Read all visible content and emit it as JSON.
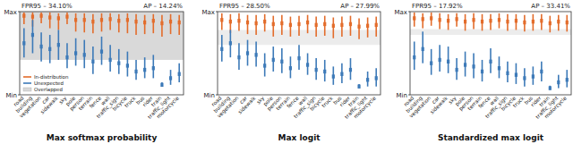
{
  "chart_data": [
    {
      "type": "errorbar",
      "title": "Max softmax probability",
      "annotations": [
        "FPR95 – 34.10%",
        "AP – 14.24%"
      ],
      "categories": [
        "road",
        "building",
        "vegetation",
        "car",
        "sidewalk",
        "sky",
        "pole",
        "person",
        "terrain",
        "fence",
        "wall",
        "traffic_sign",
        "bicycle",
        "truck",
        "bus",
        "rider",
        "train",
        "traffic_light",
        "motorcycle"
      ],
      "ylim": [
        0,
        1
      ],
      "yticks": [
        {
          "value": 1,
          "label": "Max"
        },
        {
          "value": 0,
          "label": "Min"
        }
      ],
      "legend": "lower left",
      "overlap": {
        "name": "Overlapped",
        "range": [
          0.42,
          1.0
        ],
        "color": "#d9d9d9"
      },
      "series": [
        {
          "name": "In-distribution",
          "color": "#e36c2b",
          "values": [
            0.95,
            0.94,
            0.95,
            0.93,
            0.92,
            0.94,
            0.9,
            0.9,
            0.88,
            0.9,
            0.91,
            0.89,
            0.9,
            0.88,
            0.87,
            0.89,
            0.86,
            0.88,
            0.87
          ],
          "lower": [
            0.85,
            0.82,
            0.86,
            0.8,
            0.78,
            0.85,
            0.76,
            0.75,
            0.74,
            0.76,
            0.78,
            0.75,
            0.74,
            0.72,
            0.73,
            0.74,
            0.7,
            0.73,
            0.72
          ],
          "upper": [
            0.99,
            0.99,
            0.99,
            0.99,
            0.98,
            0.99,
            0.98,
            0.98,
            0.97,
            0.98,
            0.98,
            0.97,
            0.98,
            0.97,
            0.96,
            0.97,
            0.96,
            0.97,
            0.96
          ]
        },
        {
          "name": "Unexpected",
          "color": "#3d7ab8",
          "values": [
            0.62,
            0.72,
            0.58,
            0.55,
            0.6,
            0.45,
            0.5,
            0.48,
            0.4,
            0.52,
            0.42,
            0.38,
            0.35,
            0.28,
            0.3,
            0.32,
            0.12,
            0.2,
            0.25
          ],
          "lower": [
            0.45,
            0.5,
            0.4,
            0.38,
            0.42,
            0.32,
            0.35,
            0.32,
            0.25,
            0.36,
            0.28,
            0.25,
            0.22,
            0.18,
            0.2,
            0.2,
            0.1,
            0.12,
            0.15
          ],
          "upper": [
            0.8,
            0.9,
            0.75,
            0.72,
            0.78,
            0.62,
            0.68,
            0.66,
            0.58,
            0.7,
            0.6,
            0.55,
            0.52,
            0.42,
            0.45,
            0.48,
            0.15,
            0.3,
            0.38
          ]
        }
      ]
    },
    {
      "type": "errorbar",
      "title": "Max logit",
      "annotations": [
        "FPR95 – 28.50%",
        "AP – 27.99%"
      ],
      "categories": [
        "road",
        "building",
        "vegetation",
        "car",
        "sidewalk",
        "sky",
        "pole",
        "person",
        "terrain",
        "fence",
        "wall",
        "traffic_sign",
        "bicycle",
        "truck",
        "bus",
        "rider",
        "train",
        "traffic_light",
        "motorcycle"
      ],
      "ylim": [
        0,
        1
      ],
      "yticks": [
        {
          "value": 1,
          "label": "Max"
        },
        {
          "value": 0,
          "label": "Min"
        }
      ],
      "overlap": {
        "range": [
          0.6,
          0.78
        ],
        "color": "#ececec"
      },
      "series": [
        {
          "color": "#e36c2b",
          "values": [
            0.9,
            0.88,
            0.89,
            0.87,
            0.86,
            0.88,
            0.85,
            0.86,
            0.84,
            0.85,
            0.87,
            0.84,
            0.85,
            0.83,
            0.84,
            0.85,
            0.82,
            0.83,
            0.84
          ],
          "lower": [
            0.78,
            0.74,
            0.77,
            0.73,
            0.72,
            0.76,
            0.7,
            0.72,
            0.7,
            0.71,
            0.74,
            0.7,
            0.71,
            0.68,
            0.7,
            0.71,
            0.67,
            0.69,
            0.7
          ],
          "upper": [
            0.98,
            0.97,
            0.98,
            0.96,
            0.96,
            0.97,
            0.95,
            0.96,
            0.94,
            0.95,
            0.96,
            0.94,
            0.95,
            0.93,
            0.94,
            0.95,
            0.92,
            0.93,
            0.94
          ]
        },
        {
          "color": "#3d7ab8",
          "values": [
            0.55,
            0.62,
            0.45,
            0.5,
            0.48,
            0.35,
            0.42,
            0.4,
            0.32,
            0.44,
            0.36,
            0.3,
            0.28,
            0.22,
            0.25,
            0.3,
            0.1,
            0.18,
            0.2
          ],
          "lower": [
            0.4,
            0.45,
            0.3,
            0.35,
            0.34,
            0.22,
            0.28,
            0.26,
            0.2,
            0.3,
            0.24,
            0.18,
            0.16,
            0.12,
            0.14,
            0.18,
            0.08,
            0.1,
            0.1
          ],
          "upper": [
            0.72,
            0.78,
            0.62,
            0.66,
            0.64,
            0.5,
            0.58,
            0.56,
            0.46,
            0.6,
            0.5,
            0.44,
            0.42,
            0.34,
            0.38,
            0.44,
            0.13,
            0.28,
            0.32
          ]
        }
      ]
    },
    {
      "type": "errorbar",
      "title": "Standardized max logit",
      "annotations": [
        "FPR95 – 17.92%",
        "AP – 33.41%"
      ],
      "categories": [
        "road",
        "building",
        "vegetation",
        "car",
        "sidewalk",
        "sky",
        "pole",
        "person",
        "terrain",
        "fence",
        "wall",
        "traffic_sign",
        "bicycle",
        "truck",
        "bus",
        "rider",
        "train",
        "traffic_light",
        "motorcycle"
      ],
      "ylim": [
        0,
        1
      ],
      "yticks": [
        {
          "value": 1,
          "label": "Max"
        },
        {
          "value": 0,
          "label": "Min"
        }
      ],
      "overlap": {
        "range": [
          0.72,
          0.79
        ],
        "color": "#ececec"
      },
      "series": [
        {
          "color": "#e36c2b",
          "values": [
            0.92,
            0.91,
            0.92,
            0.9,
            0.89,
            0.91,
            0.88,
            0.9,
            0.88,
            0.89,
            0.9,
            0.88,
            0.89,
            0.87,
            0.88,
            0.89,
            0.86,
            0.88,
            0.87
          ],
          "lower": [
            0.82,
            0.8,
            0.83,
            0.79,
            0.78,
            0.82,
            0.77,
            0.79,
            0.77,
            0.78,
            0.8,
            0.77,
            0.78,
            0.76,
            0.77,
            0.78,
            0.75,
            0.77,
            0.76
          ],
          "upper": [
            0.99,
            0.98,
            0.99,
            0.98,
            0.97,
            0.98,
            0.97,
            0.98,
            0.97,
            0.97,
            0.98,
            0.97,
            0.97,
            0.96,
            0.97,
            0.97,
            0.95,
            0.96,
            0.96
          ]
        },
        {
          "color": "#3d7ab8",
          "values": [
            0.45,
            0.55,
            0.38,
            0.42,
            0.4,
            0.3,
            0.36,
            0.34,
            0.28,
            0.4,
            0.32,
            0.26,
            0.24,
            0.2,
            0.22,
            0.28,
            0.08,
            0.15,
            0.18
          ],
          "lower": [
            0.3,
            0.38,
            0.24,
            0.28,
            0.26,
            0.18,
            0.22,
            0.2,
            0.16,
            0.26,
            0.2,
            0.15,
            0.13,
            0.1,
            0.12,
            0.16,
            0.06,
            0.08,
            0.09
          ],
          "upper": [
            0.64,
            0.76,
            0.55,
            0.6,
            0.58,
            0.44,
            0.52,
            0.5,
            0.42,
            0.56,
            0.46,
            0.4,
            0.38,
            0.32,
            0.34,
            0.4,
            0.11,
            0.24,
            0.3
          ]
        }
      ]
    }
  ]
}
